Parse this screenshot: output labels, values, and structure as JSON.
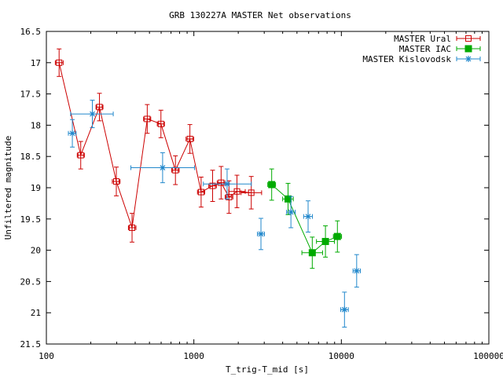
{
  "chart_data": {
    "type": "scatter",
    "title": "GRB 130227A MASTER Net observations",
    "xlabel": "T_trig-T_mid [s]",
    "ylabel": "Unfiltered magnitude",
    "xscale": "log",
    "xlim": [
      100,
      100000
    ],
    "ylim": [
      16.5,
      21.5
    ],
    "y_inverted": true,
    "x_ticks": [
      {
        "value": 100,
        "label": "100"
      },
      {
        "value": 1000,
        "label": "1000"
      },
      {
        "value": 10000,
        "label": "10000"
      },
      {
        "value": 100000,
        "label": "100000"
      }
    ],
    "y_ticks": [
      {
        "value": 16.5,
        "label": "16.5"
      },
      {
        "value": 17,
        "label": "17"
      },
      {
        "value": 17.5,
        "label": "17.5"
      },
      {
        "value": 18,
        "label": "18"
      },
      {
        "value": 18.5,
        "label": "18.5"
      },
      {
        "value": 19,
        "label": "19"
      },
      {
        "value": 19.5,
        "label": "19.5"
      },
      {
        "value": 20,
        "label": "20"
      },
      {
        "value": 20.5,
        "label": "20.5"
      },
      {
        "value": 21,
        "label": "21"
      },
      {
        "value": 21.5,
        "label": "21.5"
      }
    ],
    "legend_position": "top-right",
    "series": [
      {
        "name": "MASTER Ural",
        "color": "#cc0000",
        "marker": "open-square",
        "connected": true,
        "points": [
          {
            "x": 122,
            "xlo": 115,
            "xhi": 130,
            "y": 17.0,
            "yerr": 0.22
          },
          {
            "x": 171,
            "xlo": 162,
            "xhi": 181,
            "y": 18.48,
            "yerr": 0.22
          },
          {
            "x": 229,
            "xlo": 217,
            "xhi": 242,
            "y": 17.71,
            "yerr": 0.22
          },
          {
            "x": 298,
            "xlo": 280,
            "xhi": 316,
            "y": 18.9,
            "yerr": 0.23
          },
          {
            "x": 381,
            "xlo": 360,
            "xhi": 405,
            "y": 19.64,
            "yerr": 0.23
          },
          {
            "x": 483,
            "xlo": 456,
            "xhi": 510,
            "y": 17.9,
            "yerr": 0.23
          },
          {
            "x": 598,
            "xlo": 565,
            "xhi": 632,
            "y": 17.98,
            "yerr": 0.22
          },
          {
            "x": 750,
            "xlo": 707,
            "xhi": 795,
            "y": 18.72,
            "yerr": 0.23
          },
          {
            "x": 940,
            "xlo": 885,
            "xhi": 998,
            "y": 18.22,
            "yerr": 0.23
          },
          {
            "x": 1120,
            "xlo": 1058,
            "xhi": 1185,
            "y": 19.07,
            "yerr": 0.24
          },
          {
            "x": 1340,
            "xlo": 1262,
            "xhi": 1422,
            "y": 18.97,
            "yerr": 0.25
          },
          {
            "x": 1530,
            "xlo": 1440,
            "xhi": 1625,
            "y": 18.92,
            "yerr": 0.26
          },
          {
            "x": 1730,
            "xlo": 1630,
            "xhi": 1838,
            "y": 19.15,
            "yerr": 0.26
          },
          {
            "x": 1960,
            "xlo": 1725,
            "xhi": 2230,
            "y": 19.06,
            "yerr": 0.26
          },
          {
            "x": 2450,
            "xlo": 2090,
            "xhi": 2880,
            "y": 19.08,
            "yerr": 0.26
          }
        ]
      },
      {
        "name": "MASTER IAC",
        "color": "#00aa00",
        "marker": "filled-square",
        "connected": true,
        "points": [
          {
            "x": 3370,
            "xlo": 3170,
            "xhi": 3580,
            "y": 18.95,
            "yerr": 0.25
          },
          {
            "x": 4350,
            "xlo": 4000,
            "xhi": 4720,
            "y": 19.18,
            "yerr": 0.25
          },
          {
            "x": 6350,
            "xlo": 5400,
            "xhi": 7460,
            "y": 20.04,
            "yerr": 0.25
          },
          {
            "x": 7800,
            "xlo": 6780,
            "xhi": 8970,
            "y": 19.86,
            "yerr": 0.25
          },
          {
            "x": 9400,
            "xlo": 8830,
            "xhi": 10030,
            "y": 19.78,
            "yerr": 0.25
          }
        ]
      },
      {
        "name": "MASTER Kislovodsk",
        "color": "#2288cc",
        "marker": "star",
        "connected": false,
        "points": [
          {
            "x": 150,
            "xlo": 141,
            "xhi": 159,
            "y": 18.13,
            "yerr": 0.22
          },
          {
            "x": 205,
            "xlo": 146,
            "xhi": 284,
            "y": 17.82,
            "yerr": 0.22
          },
          {
            "x": 614,
            "xlo": 374,
            "xhi": 1010,
            "y": 18.68,
            "yerr": 0.24
          },
          {
            "x": 1680,
            "xlo": 1160,
            "xhi": 2450,
            "y": 18.94,
            "yerr": 0.24
          },
          {
            "x": 2850,
            "xlo": 2700,
            "xhi": 3010,
            "y": 19.74,
            "yerr": 0.25
          },
          {
            "x": 4550,
            "xlo": 4250,
            "xhi": 4870,
            "y": 19.39,
            "yerr": 0.25
          },
          {
            "x": 5950,
            "xlo": 5550,
            "xhi": 6370,
            "y": 19.46,
            "yerr": 0.25
          },
          {
            "x": 10500,
            "xlo": 9900,
            "xhi": 11150,
            "y": 20.95,
            "yerr": 0.28
          },
          {
            "x": 12700,
            "xlo": 12000,
            "xhi": 13450,
            "y": 20.33,
            "yerr": 0.26
          }
        ]
      }
    ]
  }
}
